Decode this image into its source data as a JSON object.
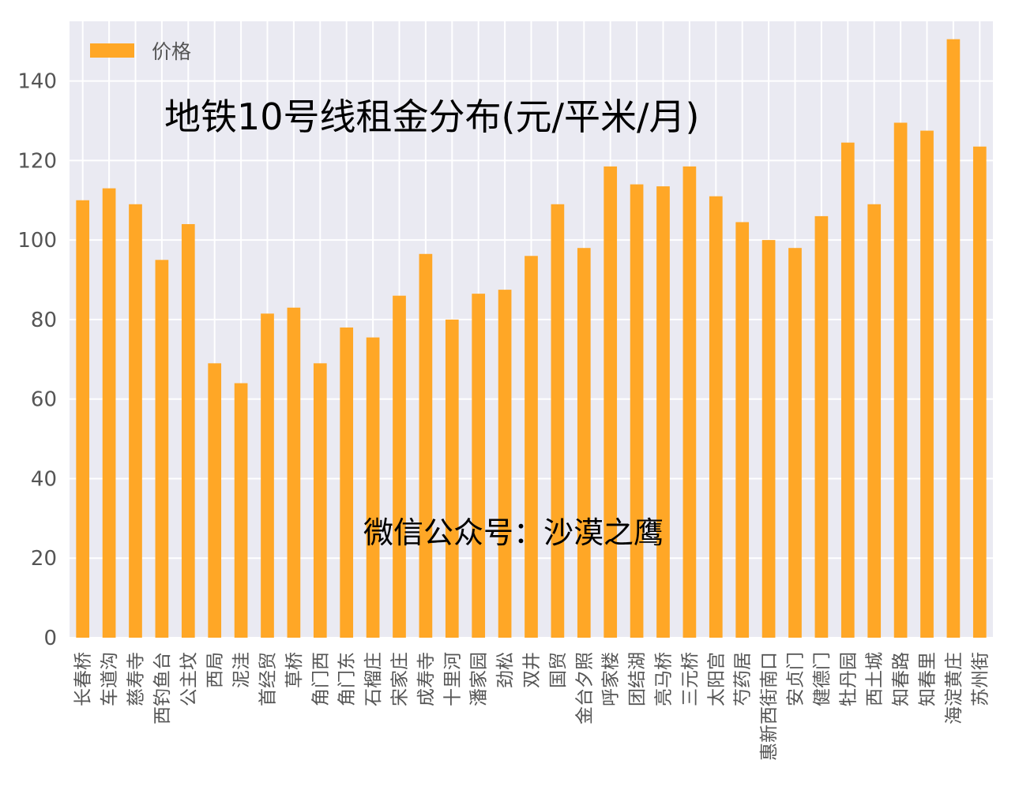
{
  "chart_data": {
    "type": "bar",
    "title": "地铁10号线租金分布(元/平米/月)",
    "watermark": "微信公众号：沙漠之鹰",
    "xlabel": "",
    "ylabel": "",
    "ylim": [
      0,
      155
    ],
    "yticks": [
      0,
      20,
      40,
      60,
      80,
      100,
      120,
      140
    ],
    "grid": true,
    "legend_position": "top-left",
    "colors": {
      "bar": "#ffa726",
      "background": "#eaeaf2",
      "grid": "#ffffff",
      "text": "#555555"
    },
    "series": [
      {
        "name": "价格",
        "values": [
          110,
          113,
          109,
          95,
          104,
          69,
          64,
          81.5,
          83,
          69,
          78,
          75.5,
          86,
          96.5,
          80,
          86.5,
          87.5,
          96,
          109,
          98,
          118.5,
          114,
          113.5,
          118.5,
          111,
          104.5,
          100,
          98,
          106,
          124.5,
          109,
          129.5,
          127.5,
          150.5,
          123.5
        ]
      }
    ],
    "categories": [
      "长春桥",
      "车道沟",
      "慈寿寺",
      "西钓鱼台",
      "公主坟",
      "西局",
      "泥洼",
      "首经贸",
      "草桥",
      "角门西",
      "角门东",
      "石榴庄",
      "宋家庄",
      "成寿寺",
      "十里河",
      "潘家园",
      "劲松",
      "双井",
      "国贸",
      "金台夕照",
      "呼家楼",
      "团结湖",
      "亮马桥",
      "三元桥",
      "太阳宫",
      "芍药居",
      "惠新西街南口",
      "安贞门",
      "健德门",
      "牡丹园",
      "西土城",
      "知春路",
      "知春里",
      "海淀黄庄",
      "苏州街"
    ]
  }
}
